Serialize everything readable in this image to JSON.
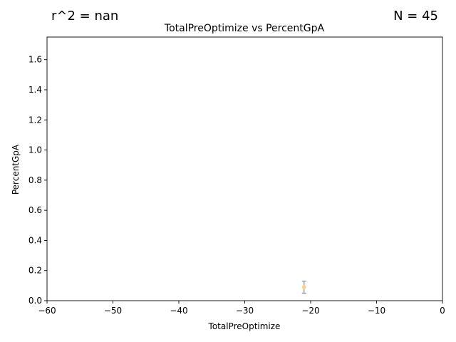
{
  "figure": {
    "r2_label": "r^2 = nan",
    "n_label": "N = 45"
  },
  "chart_data": {
    "type": "scatter",
    "title": "TotalPreOptimize vs PercentGpA",
    "xlabel": "TotalPreOptimize",
    "ylabel": "PercentGpA",
    "xlim": [
      -60,
      0
    ],
    "ylim": [
      0,
      1.75
    ],
    "xticks": [
      -60,
      -50,
      -40,
      -30,
      -20,
      -10,
      0
    ],
    "xtick_labels": [
      "−60",
      "−50",
      "−40",
      "−30",
      "−20",
      "−10",
      "0"
    ],
    "yticks": [
      0.0,
      0.2,
      0.4,
      0.6,
      0.8,
      1.0,
      1.2,
      1.4,
      1.6
    ],
    "ytick_labels": [
      "0.0",
      "0.2",
      "0.4",
      "0.6",
      "0.8",
      "1.0",
      "1.2",
      "1.4",
      "1.6"
    ],
    "grid": false,
    "points": [
      {
        "x": -21,
        "y": 0.09,
        "err_low": 0.05,
        "err_high": 0.13
      }
    ],
    "colors": {
      "point": "#ffd27f",
      "errorbar": "#7f8fa6",
      "axes": "#000000"
    }
  }
}
